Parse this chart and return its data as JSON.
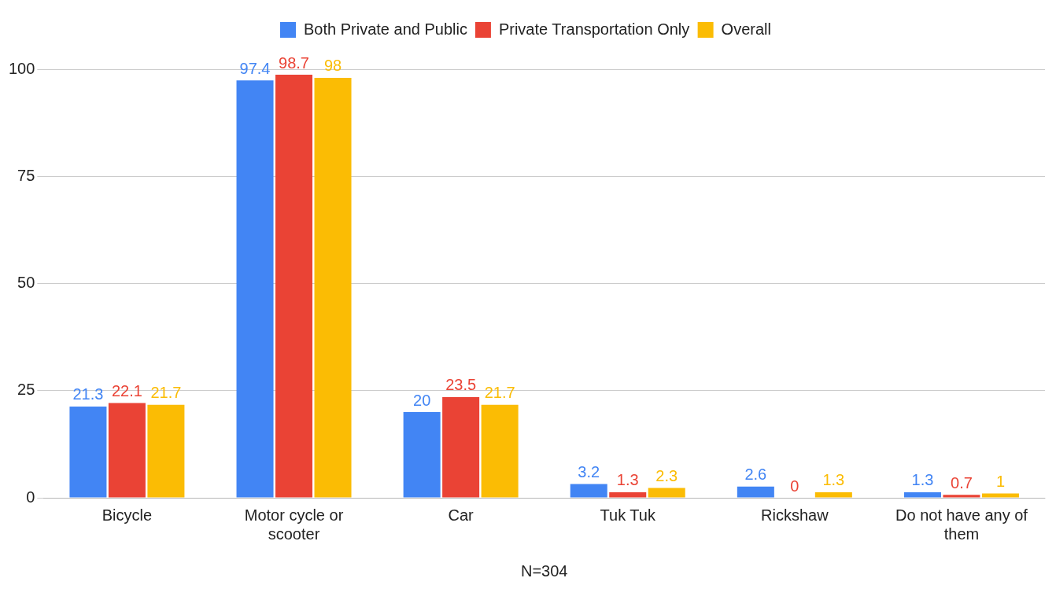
{
  "chart_data": {
    "type": "bar",
    "xlabel": "N=304",
    "categories": [
      "Bicycle",
      "Motor cycle or scooter",
      "Car",
      "Tuk Tuk",
      "Rickshaw",
      "Do not have any of them"
    ],
    "series": [
      {
        "name": "Both Private and Public",
        "color": "#4285f4",
        "values": [
          21.3,
          97.4,
          20,
          3.2,
          2.6,
          1.3
        ]
      },
      {
        "name": "Private Transportation Only",
        "color": "#ea4335",
        "values": [
          22.1,
          98.7,
          23.5,
          1.3,
          0,
          0.7
        ]
      },
      {
        "name": "Overall",
        "color": "#fbbc04",
        "values": [
          21.7,
          98,
          21.7,
          2.3,
          1.3,
          1
        ]
      }
    ],
    "ylim": [
      0,
      100
    ],
    "yticks": [
      0,
      25,
      50,
      75,
      100
    ],
    "grid": "y",
    "legend": "top",
    "data_labels": true
  }
}
